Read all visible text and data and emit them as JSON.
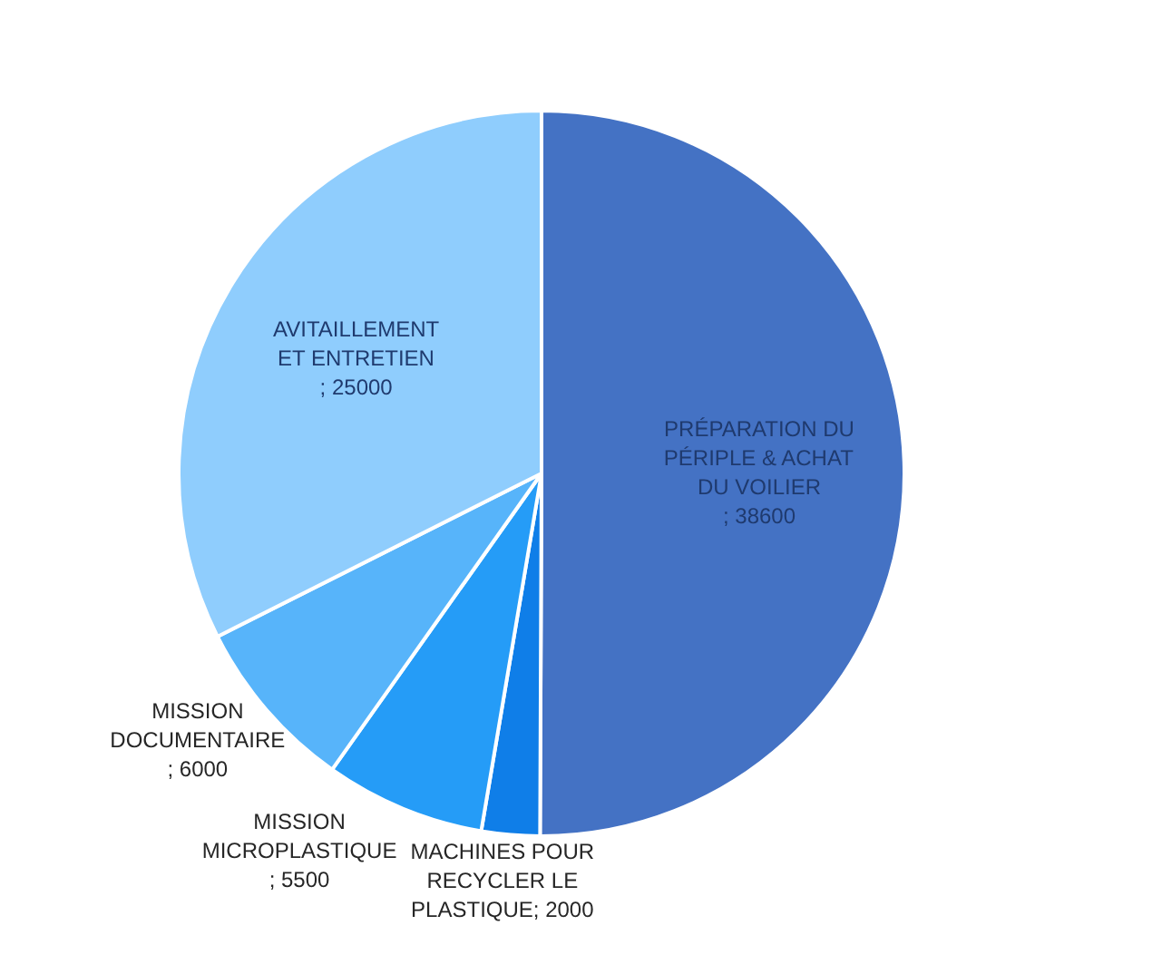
{
  "chart_data": {
    "type": "pie",
    "categories": [
      "PRÉPARATION DU PÉRIPLE & ACHAT DU VOILIER",
      "MACHINES POUR RECYCLER LE PLASTIQUE",
      "MISSION MICROPLASTIQUE",
      "MISSION DOCUMENTAIRE",
      "AVITAILLEMENT ET ENTRETIEN"
    ],
    "values": [
      38600,
      2000,
      5500,
      6000,
      25000
    ],
    "colors": [
      "#4472c4",
      "#0f7ee8",
      "#259cf7",
      "#57b4fa",
      "#8fcdfd"
    ],
    "value_labels": [
      "; 38600",
      "; 2000",
      "; 5500",
      "; 6000",
      "; 25000"
    ],
    "legend": false
  }
}
